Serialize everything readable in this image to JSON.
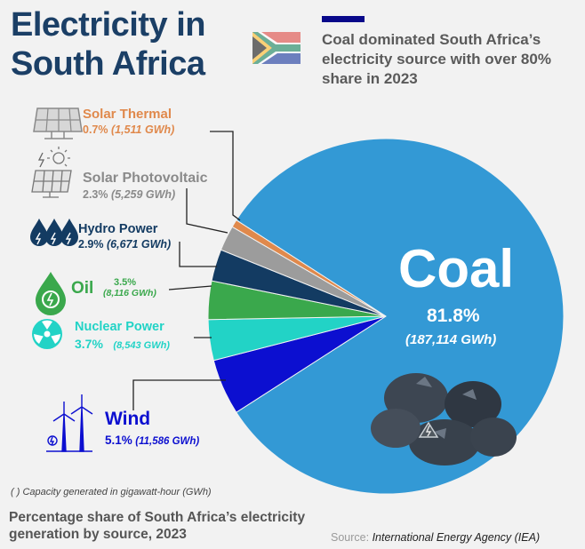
{
  "title_line1": "Electricity in",
  "title_line2": "South Africa",
  "subtitle": "Coal dominated South Africa’s electricity source with over 80% share in 2023",
  "note": "( ) Capacity generated in gigawatt-hour (GWh)",
  "footer_title": "Percentage share of South Africa’s electricity generation by source, 2023",
  "source_label": "Source:",
  "source_name": "International Energy Agency (IEA)",
  "colors": {
    "coal": "#3399d5",
    "solar_thermal": "#e0894c",
    "solar_pv": "#9c9c9c",
    "hydro": "#133b62",
    "oil": "#3aa84c",
    "nuclear": "#22d3c6",
    "wind": "#0c0fd0",
    "title": "#1b3f66"
  },
  "chart_data": {
    "type": "pie",
    "slices": [
      {
        "key": "coal",
        "name": "Coal",
        "percent": 81.8,
        "percent_label": "81.8%",
        "gwh": 187114,
        "gwh_label": "(187,114 GWh)"
      },
      {
        "key": "wind",
        "name": "Wind",
        "percent": 5.1,
        "percent_label": "5.1%",
        "gwh": 11586,
        "gwh_label": "(11,586 GWh)"
      },
      {
        "key": "nuclear",
        "name": "Nuclear Power",
        "percent": 3.7,
        "percent_label": "3.7%",
        "gwh": 8543,
        "gwh_label": "(8,543 GWh)"
      },
      {
        "key": "oil",
        "name": "Oil",
        "percent": 3.5,
        "percent_label": "3.5%",
        "gwh": 8116,
        "gwh_label": "(8,116 GWh)"
      },
      {
        "key": "hydro",
        "name": "Hydro Power",
        "percent": 2.9,
        "percent_label": "2.9%",
        "gwh": 6671,
        "gwh_label": "(6,671 GWh)"
      },
      {
        "key": "solar_pv",
        "name": "Solar Photovoltaic",
        "percent": 2.3,
        "percent_label": "2.3%",
        "gwh": 5259,
        "gwh_label": "(5,259 GWh)"
      },
      {
        "key": "solar_thermal",
        "name": "Solar Thermal",
        "percent": 0.7,
        "percent_label": "0.7%",
        "gwh": 1511,
        "gwh_label": "(1,511 GWh)"
      }
    ]
  }
}
